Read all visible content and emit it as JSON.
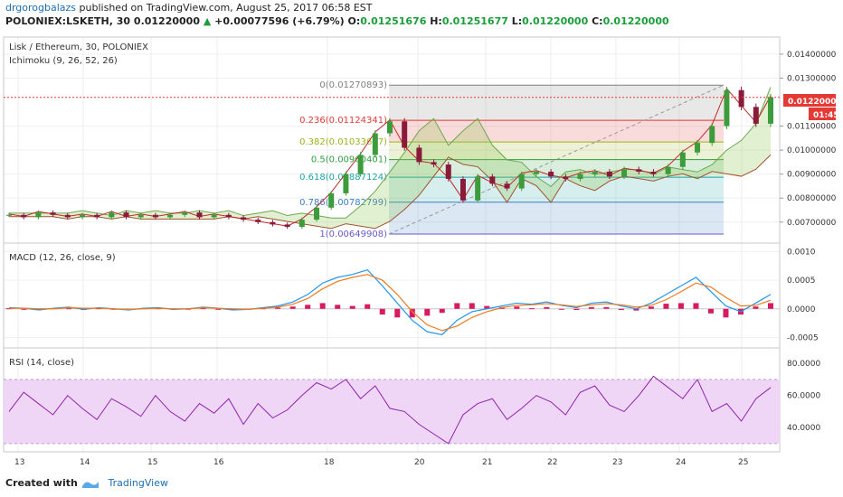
{
  "header": {
    "user": "drgorogbalazs",
    "published": "published on TradingView.com, August 25, 2017 06:58 EST"
  },
  "ohlc": {
    "symbol": "POLONIEX:LSKETH, 30",
    "last": "0.01220000",
    "change": "+0.00077596 (+6.79%)",
    "o_label": "O:",
    "o": "0.01251676",
    "h_label": "H:",
    "h": "0.01251677",
    "l_label": "L:",
    "l": "0.01220000",
    "c_label": "C:",
    "c": "0.01220000"
  },
  "colors": {
    "up": "#3c9c3c",
    "down": "#8a1a3a",
    "macd_line": "#2196f3",
    "signal_line": "#f07a1a",
    "hist": "#d81b60",
    "rsi_line": "#8e24aa",
    "rsi_band": "#efd6f7",
    "price_tag": "#e53935",
    "time_tag": "#e53935"
  },
  "price_pane": {
    "title": "Lisk / Ethereum, 30, POLONIEX",
    "indicator": "Ichimoku (9, 26, 52, 26)",
    "price_tag": "0.01220000",
    "time_tag": "01:45"
  },
  "macd_pane": {
    "title": "MACD (12, 26, close, 9)"
  },
  "rsi_pane": {
    "title": "RSI (14, close)"
  },
  "footer": {
    "created": "Created with",
    "brand": "TradingView"
  },
  "chart_data": [
    {
      "type": "line",
      "pane": "price",
      "yticks": [
        "0.01400000",
        "0.01300000",
        "0.01100000",
        "0.01000000",
        "0.00900000",
        "0.00800000",
        "0.00700000"
      ],
      "ylim": [
        0.0062,
        0.0146
      ],
      "xticks": [
        "13",
        "14",
        "15",
        "16",
        "18",
        "20",
        "21",
        "22",
        "23",
        "24",
        "25"
      ],
      "fib_levels": [
        {
          "label": "0(0.01270893)",
          "ratio": 0,
          "value": 0.01270893,
          "color": "#808080"
        },
        {
          "label": "0.236(0.01124341)",
          "ratio": 0.236,
          "value": 0.01124341,
          "color": "#e53935"
        },
        {
          "label": "0.382(0.01033677)",
          "ratio": 0.382,
          "value": 0.01033677,
          "color": "#9bb31a"
        },
        {
          "label": "0.5(0.00960401)",
          "ratio": 0.5,
          "value": 0.00960401,
          "color": "#2e9e3e"
        },
        {
          "label": "0.618(0.00887124)",
          "ratio": 0.618,
          "value": 0.00887124,
          "color": "#1ea3a3"
        },
        {
          "label": "0.786(0.00782799)",
          "ratio": 0.786,
          "value": 0.00782799,
          "color": "#3a7fc4"
        },
        {
          "label": "1(0.00649908)",
          "ratio": 1,
          "value": 0.00649908,
          "color": "#6a5acd"
        }
      ],
      "last_price": 0.0122,
      "series": [
        {
          "values": [
            0.0073,
            0.0072,
            0.0074,
            0.0073,
            0.0072,
            0.0073,
            0.0072,
            0.0074,
            0.0072,
            0.0073,
            0.0072,
            0.0073,
            0.0074,
            0.0072,
            0.0073,
            0.0072,
            0.0071,
            0.007,
            0.0069,
            0.0068,
            0.0071,
            0.0076,
            0.0082,
            0.009,
            0.0098,
            0.0107,
            0.0112,
            0.0101,
            0.0095,
            0.0094,
            0.0088,
            0.0079,
            0.0089,
            0.0086,
            0.0084,
            0.009,
            0.0091,
            0.0089,
            0.0088,
            0.009,
            0.0091,
            0.0089,
            0.0092,
            0.0091,
            0.009,
            0.0093,
            0.0099,
            0.0103,
            0.011,
            0.0125,
            0.0118,
            0.0111,
            0.0122
          ]
        }
      ]
    },
    {
      "type": "line",
      "pane": "macd",
      "yticks": [
        "0.0010",
        "0.0005",
        "0.0000",
        "-0.0005"
      ],
      "ylim": [
        -0.00065,
        0.0011
      ],
      "series": [
        {
          "name": "MACD",
          "values": [
            2e-05,
            1e-05,
            -2e-05,
            1e-05,
            3e-05,
            -1e-05,
            2e-05,
            0.0,
            -2e-05,
            1e-05,
            2e-05,
            -1e-05,
            0.0,
            3e-05,
            1e-05,
            -2e-05,
            -1e-05,
            2e-05,
            5e-05,
            0.00012,
            0.00025,
            0.00045,
            0.00055,
            0.0006,
            0.00068,
            0.0004,
            0.0001,
            -0.0002,
            -0.0004,
            -0.00045,
            -0.0002,
            -5e-05,
            0.0,
            5e-05,
            0.0001,
            8e-05,
            0.00012,
            6e-05,
            2e-05,
            0.0001,
            0.00012,
            5e-05,
            0.0,
            0.0001,
            0.00025,
            0.0004,
            0.00055,
            0.0003,
            5e-05,
            -5e-05,
            0.0001,
            0.00025
          ]
        },
        {
          "name": "Signal",
          "values": [
            1e-05,
            1e-05,
            0.0,
            0.0,
            2e-05,
            1e-05,
            1e-05,
            0.0,
            -1e-05,
            0.0,
            1e-05,
            0.0,
            0.0,
            2e-05,
            1e-05,
            0.0,
            -1e-05,
            1e-05,
            3e-05,
            8e-05,
            0.00018,
            0.00035,
            0.00048,
            0.00055,
            0.0006,
            0.0005,
            0.00025,
            -5e-05,
            -0.00028,
            -0.00038,
            -0.0003,
            -0.00015,
            -5e-05,
            2e-05,
            6e-05,
            7e-05,
            9e-05,
            7e-05,
            4e-05,
            7e-05,
            9e-05,
            7e-05,
            3e-05,
            6e-05,
            0.00016,
            0.0003,
            0.00045,
            0.00038,
            0.0002,
            5e-05,
            6e-05,
            0.00015
          ]
        }
      ]
    },
    {
      "type": "line",
      "pane": "rsi",
      "yticks": [
        "80.0000",
        "60.0000",
        "40.0000"
      ],
      "ylim": [
        26,
        88
      ],
      "band": [
        30,
        70
      ],
      "series": [
        {
          "name": "RSI",
          "values": [
            50,
            62,
            55,
            48,
            60,
            52,
            45,
            58,
            53,
            47,
            60,
            50,
            44,
            55,
            49,
            58,
            42,
            55,
            46,
            51,
            60,
            68,
            64,
            70,
            58,
            66,
            52,
            50,
            42,
            36,
            30,
            48,
            55,
            58,
            45,
            52,
            60,
            56,
            48,
            62,
            66,
            54,
            50,
            60,
            72,
            65,
            58,
            70,
            50,
            55,
            44,
            58,
            65
          ]
        }
      ]
    }
  ]
}
